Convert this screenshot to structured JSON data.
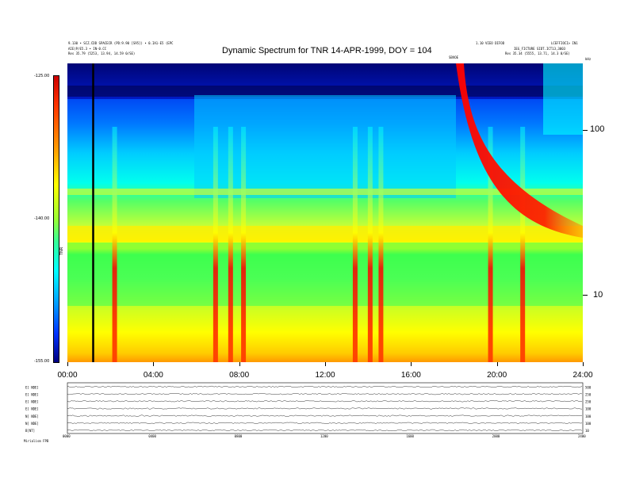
{
  "header": {
    "title": "Dynamic Spectrum for TNR 14-APR-1999, DOY = 104",
    "left_line1": "9.130 • SCZ.CDD SPACECR (PD:9.90 [S95]) • 0.IA1-E5 (EPC",
    "left_line2": "AIE)P/E5.3 • IN-0.CC",
    "left_line3": "Res    35.79 (5253, 13.94, 14.59 0/SE)",
    "right_line1": "1.10 VIEO DIFOD",
    "right_line2": "LCEFFIOCI> IN1",
    "right_line3": "IEG_FICTURE SIDT.ICT13,3003",
    "right_line4": "Res    35.34 (5555, 13.71, 14.3 0/SE)",
    "top_marker": "SBVOE",
    "right_axis_unit": "kHz"
  },
  "colorbar": {
    "ticks": [
      "-125.00",
      "-140.00",
      "-155.00"
    ],
    "label": "TNR"
  },
  "chart_data": {
    "type": "heatmap",
    "title": "Dynamic Spectrum for TNR 14-APR-1999, DOY = 104",
    "x_ticks": [
      "00:00",
      "04:00",
      "08:00",
      "12:00",
      "16:00",
      "20:00",
      "24:00"
    ],
    "x_range": [
      0,
      24
    ],
    "y_scale": "log",
    "y_ticks": [
      "100",
      "10"
    ],
    "y_range_khz": [
      4,
      250
    ],
    "colorbar_range": [
      -155,
      -125
    ],
    "colors": {
      "deep": "#00008b",
      "blue": "#0033ff",
      "cyan": "#00ffff",
      "green": "#33ff66",
      "yellow": "#ffff00",
      "orange": "#ff9900",
      "red": "#ff0000"
    },
    "bursts_hours": [
      2.2,
      6.9,
      7.6,
      8.2,
      13.4,
      14.1,
      14.6,
      19.7,
      21.2
    ],
    "type2_start_hour": 18.3,
    "type2_end_hour": 24,
    "data_gap_line_hour": 1.2
  },
  "line_panel": {
    "labels": [
      "E[ NDE]",
      "E[ NDE]",
      "E[ NDE]",
      "E[ NDE]",
      "N[ NDE]",
      "N[ NDE]",
      "B[NT]"
    ],
    "right_ticks": [
      "500",
      "250",
      "250",
      "100",
      "100",
      "100",
      "10"
    ],
    "x_ticks": [
      "0000",
      "0400",
      "0800",
      "1200",
      "1600",
      "2000",
      "2400"
    ],
    "footer_label": "Mirialism   FPB"
  }
}
